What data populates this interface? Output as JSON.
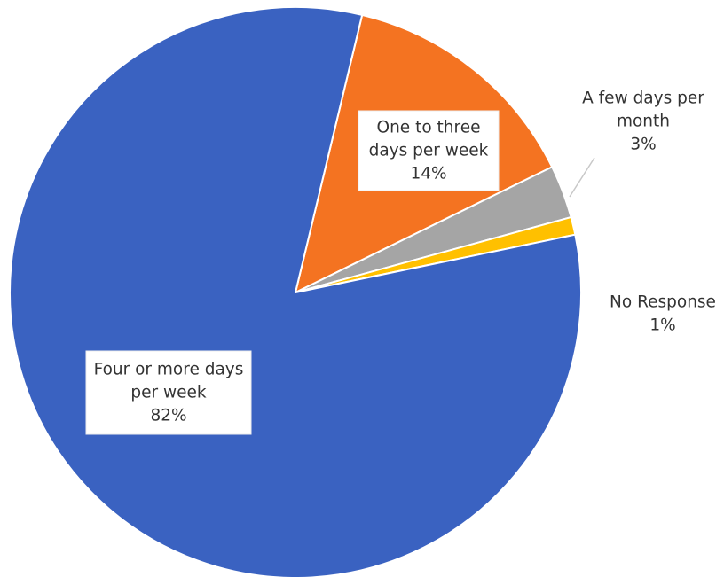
{
  "chart_data": {
    "type": "pie",
    "title": "",
    "start_angle_deg": 13.5,
    "direction": "clockwise",
    "slices": [
      {
        "name": "One to three days per week",
        "value": 14,
        "label_lines": [
          "One to three",
          "days per week",
          "14%"
        ],
        "color": "#f47321"
      },
      {
        "name": "A few days per month",
        "value": 3,
        "label_lines": [
          "A few days per",
          "month",
          "3%"
        ],
        "color": "#a5a5a5"
      },
      {
        "name": "No Response",
        "value": 1,
        "label_lines": [
          "No Response",
          "1%"
        ],
        "color": "#ffc000"
      },
      {
        "name": "Four or more days per week",
        "value": 82,
        "label_lines": [
          "Four or more days",
          "per week",
          "82%"
        ],
        "color": "#3a62c1"
      }
    ]
  }
}
